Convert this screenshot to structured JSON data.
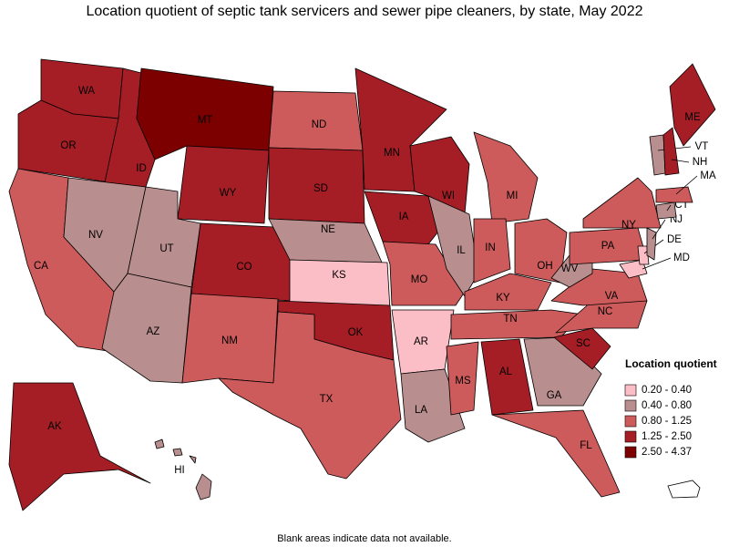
{
  "title": "Location quotient of septic tank servicers and sewer pipe cleaners, by state, May 2022",
  "note": "Blank areas indicate data not available.",
  "legend": {
    "title": "Location quotient",
    "items": [
      {
        "label": "0.20 - 0.40",
        "color": "#fbbec6"
      },
      {
        "label": "0.40 - 0.80",
        "color": "#b98e8e"
      },
      {
        "label": "0.80 - 1.25",
        "color": "#cd5b5b"
      },
      {
        "label": "1.25 - 2.50",
        "color": "#a51e25"
      },
      {
        "label": "2.50 - 4.37",
        "color": "#7d0000"
      }
    ]
  },
  "states": [
    {
      "abbr": "WA",
      "bin": 3
    },
    {
      "abbr": "OR",
      "bin": 3
    },
    {
      "abbr": "CA",
      "bin": 2
    },
    {
      "abbr": "ID",
      "bin": 3
    },
    {
      "abbr": "NV",
      "bin": 1
    },
    {
      "abbr": "MT",
      "bin": 4
    },
    {
      "abbr": "WY",
      "bin": 3
    },
    {
      "abbr": "UT",
      "bin": 1
    },
    {
      "abbr": "AZ",
      "bin": 1
    },
    {
      "abbr": "CO",
      "bin": 3
    },
    {
      "abbr": "NM",
      "bin": 2
    },
    {
      "abbr": "ND",
      "bin": 2
    },
    {
      "abbr": "SD",
      "bin": 3
    },
    {
      "abbr": "NE",
      "bin": 1
    },
    {
      "abbr": "KS",
      "bin": 0
    },
    {
      "abbr": "OK",
      "bin": 3
    },
    {
      "abbr": "TX",
      "bin": 2
    },
    {
      "abbr": "MN",
      "bin": 3
    },
    {
      "abbr": "IA",
      "bin": 3
    },
    {
      "abbr": "MO",
      "bin": 2
    },
    {
      "abbr": "AR",
      "bin": 0
    },
    {
      "abbr": "LA",
      "bin": 1
    },
    {
      "abbr": "WI",
      "bin": 3
    },
    {
      "abbr": "IL",
      "bin": 1
    },
    {
      "abbr": "MI",
      "bin": 2
    },
    {
      "abbr": "IN",
      "bin": 2
    },
    {
      "abbr": "OH",
      "bin": 2
    },
    {
      "abbr": "KY",
      "bin": 2
    },
    {
      "abbr": "TN",
      "bin": 2
    },
    {
      "abbr": "MS",
      "bin": 2
    },
    {
      "abbr": "AL",
      "bin": 3
    },
    {
      "abbr": "GA",
      "bin": 1
    },
    {
      "abbr": "FL",
      "bin": 2
    },
    {
      "abbr": "SC",
      "bin": 3
    },
    {
      "abbr": "NC",
      "bin": 2
    },
    {
      "abbr": "VA",
      "bin": 2
    },
    {
      "abbr": "WV",
      "bin": 1
    },
    {
      "abbr": "PA",
      "bin": 2
    },
    {
      "abbr": "NY",
      "bin": 2
    },
    {
      "abbr": "MD",
      "bin": 0
    },
    {
      "abbr": "DE",
      "bin": 0
    },
    {
      "abbr": "NJ",
      "bin": 1
    },
    {
      "abbr": "CT",
      "bin": 1
    },
    {
      "abbr": "MA",
      "bin": 2
    },
    {
      "abbr": "VT",
      "bin": 1
    },
    {
      "abbr": "NH",
      "bin": 3
    },
    {
      "abbr": "ME",
      "bin": 3
    },
    {
      "abbr": "AK",
      "bin": 3
    },
    {
      "abbr": "HI",
      "bin": 1
    }
  ]
}
